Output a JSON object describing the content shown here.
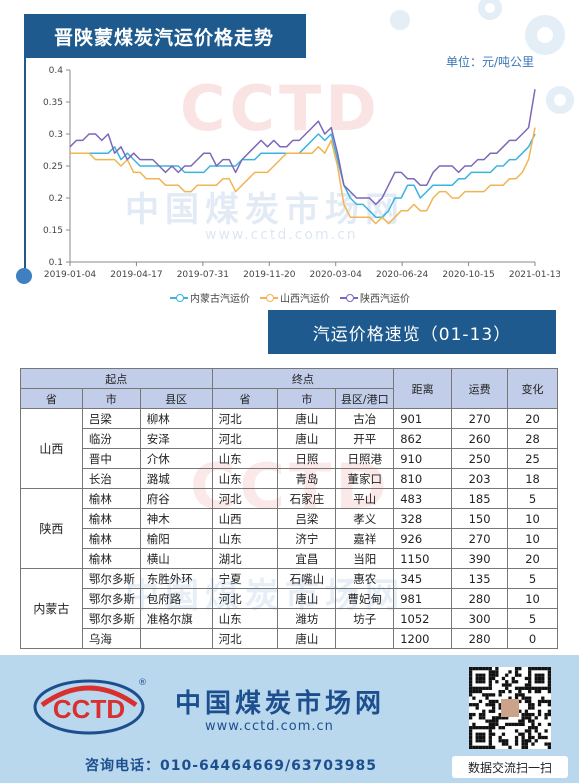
{
  "header": {
    "title": "晋陕蒙煤炭汽运价格走势",
    "unit": "单位：元/吨公里"
  },
  "watermark": {
    "brand": "CCTD",
    "name": "中国煤炭市场网",
    "url": "www.cctd.com.cn"
  },
  "chart_data": {
    "type": "line",
    "ylim": [
      0.1,
      0.4
    ],
    "yticks": [
      "0.1",
      "0.15",
      "0.2",
      "0.25",
      "0.3",
      "0.35",
      "0.4"
    ],
    "xticks": [
      "2019-01-04",
      "2019-04-17",
      "2019-07-31",
      "2019-11-20",
      "2020-03-04",
      "2020-06-24",
      "2020-10-15",
      "2021-01-13"
    ],
    "series": [
      {
        "name": "内蒙古汽运价",
        "color": "#3ab3e0",
        "values": [
          0.27,
          0.27,
          0.27,
          0.27,
          0.27,
          0.27,
          0.27,
          0.28,
          0.26,
          0.27,
          0.26,
          0.25,
          0.25,
          0.25,
          0.25,
          0.25,
          0.25,
          0.25,
          0.24,
          0.24,
          0.24,
          0.24,
          0.25,
          0.25,
          0.25,
          0.25,
          0.25,
          0.26,
          0.26,
          0.26,
          0.27,
          0.27,
          0.27,
          0.27,
          0.27,
          0.27,
          0.27,
          0.28,
          0.29,
          0.3,
          0.29,
          0.3,
          0.26,
          0.22,
          0.2,
          0.19,
          0.19,
          0.18,
          0.17,
          0.17,
          0.18,
          0.2,
          0.2,
          0.22,
          0.22,
          0.2,
          0.21,
          0.22,
          0.22,
          0.22,
          0.22,
          0.23,
          0.23,
          0.24,
          0.24,
          0.24,
          0.24,
          0.25,
          0.25,
          0.26,
          0.26,
          0.27,
          0.28,
          0.3
        ]
      },
      {
        "name": "山西汽运价",
        "color": "#f0b552",
        "values": [
          0.27,
          0.27,
          0.27,
          0.27,
          0.26,
          0.26,
          0.26,
          0.26,
          0.25,
          0.26,
          0.24,
          0.24,
          0.23,
          0.23,
          0.23,
          0.22,
          0.22,
          0.22,
          0.21,
          0.21,
          0.22,
          0.22,
          0.22,
          0.22,
          0.23,
          0.23,
          0.21,
          0.22,
          0.23,
          0.24,
          0.24,
          0.24,
          0.25,
          0.26,
          0.27,
          0.27,
          0.27,
          0.27,
          0.27,
          0.28,
          0.27,
          0.29,
          0.25,
          0.19,
          0.17,
          0.17,
          0.17,
          0.17,
          0.16,
          0.17,
          0.16,
          0.17,
          0.18,
          0.18,
          0.19,
          0.18,
          0.18,
          0.2,
          0.21,
          0.21,
          0.2,
          0.2,
          0.21,
          0.21,
          0.21,
          0.21,
          0.22,
          0.22,
          0.22,
          0.23,
          0.23,
          0.24,
          0.26,
          0.31
        ]
      },
      {
        "name": "陕西汽运价",
        "color": "#7d67b8",
        "values": [
          0.28,
          0.29,
          0.29,
          0.3,
          0.3,
          0.29,
          0.3,
          0.27,
          0.28,
          0.26,
          0.27,
          0.26,
          0.26,
          0.26,
          0.25,
          0.24,
          0.25,
          0.24,
          0.25,
          0.25,
          0.26,
          0.27,
          0.27,
          0.25,
          0.26,
          0.26,
          0.24,
          0.26,
          0.27,
          0.28,
          0.29,
          0.28,
          0.29,
          0.28,
          0.28,
          0.29,
          0.29,
          0.3,
          0.31,
          0.32,
          0.3,
          0.31,
          0.27,
          0.22,
          0.21,
          0.2,
          0.2,
          0.2,
          0.19,
          0.2,
          0.22,
          0.24,
          0.24,
          0.23,
          0.23,
          0.22,
          0.22,
          0.24,
          0.25,
          0.25,
          0.25,
          0.24,
          0.25,
          0.25,
          0.26,
          0.26,
          0.27,
          0.27,
          0.28,
          0.29,
          0.29,
          0.3,
          0.31,
          0.37
        ]
      }
    ]
  },
  "table": {
    "title": "汽运价格速览（01-13）",
    "group_headers": {
      "origin": "起点",
      "dest": "终点",
      "distance": "距离",
      "freight": "运费",
      "change": "变化"
    },
    "sub_headers": {
      "province": "省",
      "city": "市",
      "county": "县区",
      "dprovince": "省",
      "dcity": "市",
      "dcounty": "县区/港口"
    },
    "groups": [
      {
        "province": "山西",
        "rows": [
          {
            "city": "吕梁",
            "county": "柳林",
            "dprov": "河北",
            "dcity": "唐山",
            "dcounty": "古冶",
            "distance": "901",
            "freight": "270",
            "change": "20"
          },
          {
            "city": "临汾",
            "county": "安泽",
            "dprov": "河北",
            "dcity": "唐山",
            "dcounty": "开平",
            "distance": "862",
            "freight": "260",
            "change": "28"
          },
          {
            "city": "晋中",
            "county": "介休",
            "dprov": "山东",
            "dcity": "日照",
            "dcounty": "日照港",
            "distance": "910",
            "freight": "250",
            "change": "25"
          },
          {
            "city": "长治",
            "county": "潞城",
            "dprov": "山东",
            "dcity": "青岛",
            "dcounty": "董家口",
            "distance": "810",
            "freight": "203",
            "change": "18"
          }
        ]
      },
      {
        "province": "陕西",
        "rows": [
          {
            "city": "榆林",
            "county": "府谷",
            "dprov": "河北",
            "dcity": "石家庄",
            "dcounty": "平山",
            "distance": "483",
            "freight": "185",
            "change": "5"
          },
          {
            "city": "榆林",
            "county": "神木",
            "dprov": "山西",
            "dcity": "吕梁",
            "dcounty": "孝义",
            "distance": "328",
            "freight": "150",
            "change": "10"
          },
          {
            "city": "榆林",
            "county": "榆阳",
            "dprov": "山东",
            "dcity": "济宁",
            "dcounty": "嘉祥",
            "distance": "926",
            "freight": "270",
            "change": "10"
          },
          {
            "city": "榆林",
            "county": "横山",
            "dprov": "湖北",
            "dcity": "宜昌",
            "dcounty": "当阳",
            "distance": "1150",
            "freight": "390",
            "change": "20"
          }
        ]
      },
      {
        "province": "内蒙古",
        "rows": [
          {
            "city": "鄂尔多斯",
            "county": "东胜外环",
            "dprov": "宁夏",
            "dcity": "石嘴山",
            "dcounty": "惠农",
            "distance": "345",
            "freight": "135",
            "change": "5"
          },
          {
            "city": "鄂尔多斯",
            "county": "包府路",
            "dprov": "河北",
            "dcity": "唐山",
            "dcounty": "曹妃甸",
            "distance": "981",
            "freight": "280",
            "change": "10"
          },
          {
            "city": "鄂尔多斯",
            "county": "准格尔旗",
            "dprov": "山东",
            "dcity": "潍坊",
            "dcounty": "坊子",
            "distance": "1052",
            "freight": "300",
            "change": "5"
          },
          {
            "city": "乌海",
            "county": "",
            "dprov": "河北",
            "dcity": "唐山",
            "dcounty": "",
            "distance": "1200",
            "freight": "280",
            "change": "0"
          }
        ]
      }
    ]
  },
  "footer": {
    "brand": "CCTD",
    "name": "中国煤炭市场网",
    "url": "www.cctd.com.cn",
    "phone": "咨询电话：010-64464669/63703985",
    "qr_caption": "数据交流扫一扫"
  }
}
